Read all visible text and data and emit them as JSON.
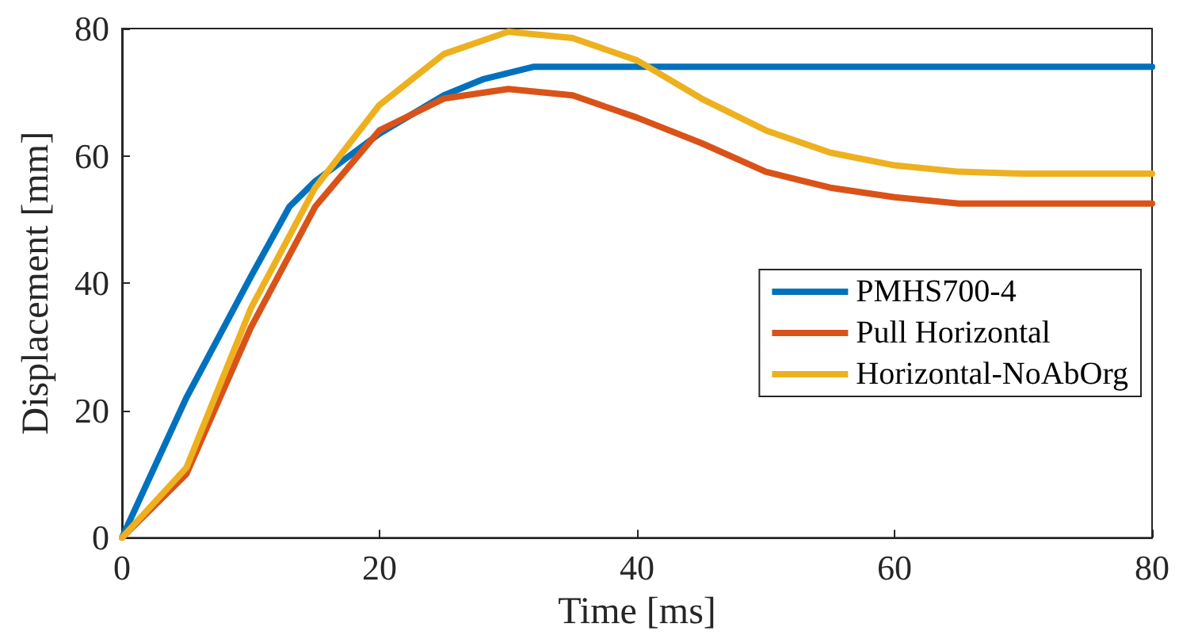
{
  "chart_data": {
    "type": "line",
    "xlabel": "Time [ms]",
    "ylabel": "Displacement [mm]",
    "xlim": [
      0,
      80
    ],
    "xticks": [
      0,
      20,
      40,
      60,
      80
    ],
    "ylim": [
      0,
      80
    ],
    "yticks": [
      0,
      20,
      40,
      60,
      80
    ],
    "grid": false,
    "legend": "right",
    "marker": "none",
    "line_style": "solid",
    "series": [
      {
        "name": "PMHS700-4",
        "color": "#0072bd",
        "x": [
          0,
          5,
          10,
          13,
          15,
          20,
          25,
          28,
          30,
          32,
          40,
          60,
          80
        ],
        "values": [
          0,
          22,
          41,
          52,
          56,
          63.5,
          69.5,
          72,
          73,
          74,
          74,
          74,
          74
        ]
      },
      {
        "name": "Pull Horizontal",
        "color": "#d95319",
        "x": [
          0,
          5,
          10,
          15,
          20,
          25,
          30,
          35,
          40,
          45,
          50,
          55,
          60,
          65,
          70,
          80
        ],
        "values": [
          0,
          10,
          33,
          52,
          64,
          69,
          70.5,
          69.5,
          66,
          62,
          57.5,
          55,
          53.5,
          52.5,
          52.5,
          52.5
        ]
      },
      {
        "name": "Horizontal-NoAbOrg",
        "color": "#edb120",
        "x": [
          0,
          5,
          10,
          15,
          20,
          25,
          30,
          35,
          40,
          45,
          50,
          55,
          60,
          65,
          70,
          80
        ],
        "values": [
          0,
          11,
          36,
          55,
          68,
          76,
          79.5,
          78.5,
          75,
          69,
          64,
          60.5,
          58.5,
          57.5,
          57.2,
          57.2
        ]
      }
    ]
  }
}
